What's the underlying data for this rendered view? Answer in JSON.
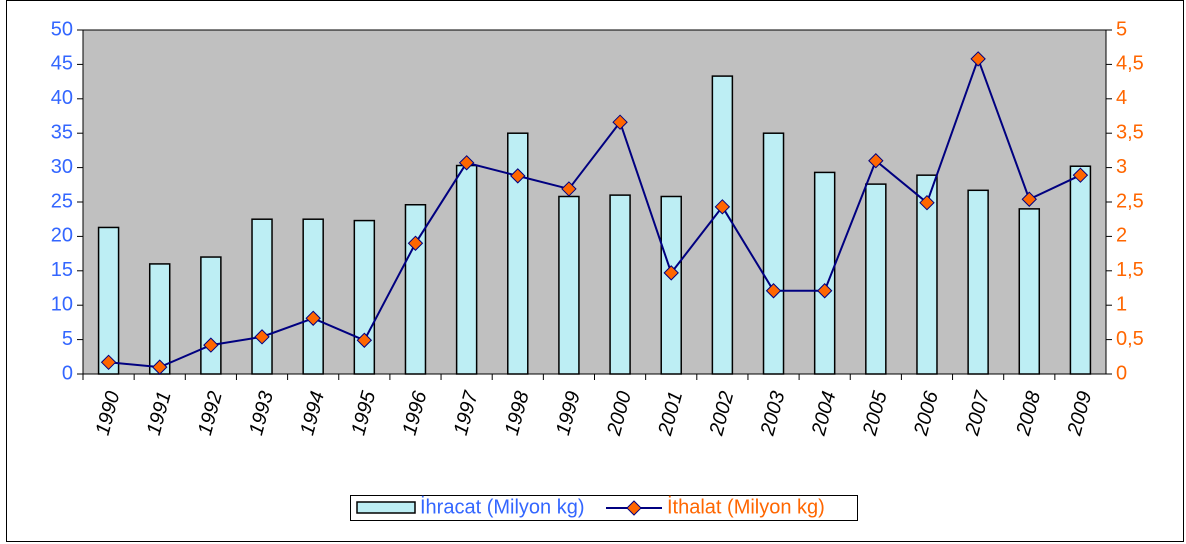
{
  "chart_data": {
    "type": "bar_line",
    "categories": [
      "1990",
      "1991",
      "1992",
      "1993",
      "1994",
      "1995",
      "1996",
      "1997",
      "1998",
      "1999",
      "2000",
      "2001",
      "2002",
      "2003",
      "2004",
      "2005",
      "2006",
      "2007",
      "2008",
      "2009"
    ],
    "series": [
      {
        "name": "İhracat (Milyon kg)",
        "type": "bar",
        "color": "#bdeef4",
        "label_color": "#3366ff",
        "axis": "y",
        "values": [
          21.3,
          16,
          17,
          22.5,
          22.5,
          22.3,
          24.6,
          30.3,
          35,
          25.8,
          26,
          25.8,
          43.3,
          35,
          29.3,
          27.6,
          28.9,
          26.7,
          24,
          30.2
        ]
      },
      {
        "name": "İthalat (Milyon kg)",
        "type": "line",
        "color": "#000080",
        "marker_color": "#ff6600",
        "label_color": "#ff6600",
        "axis": "y2",
        "values": [
          0.17,
          0.1,
          0.42,
          0.54,
          0.81,
          0.49,
          1.9,
          3.07,
          2.88,
          2.69,
          3.66,
          1.47,
          2.43,
          1.21,
          1.21,
          3.1,
          2.49,
          4.58,
          2.54,
          2.89
        ]
      }
    ],
    "ylim": [
      0,
      50
    ],
    "yticks": [
      0,
      5,
      10,
      15,
      20,
      25,
      30,
      35,
      40,
      45,
      50
    ],
    "y2lim": [
      0,
      5
    ],
    "y2ticks": [
      0,
      {
        "value": 0.5,
        "label": "0,5"
      },
      1,
      {
        "value": 1.5,
        "label": "1,5"
      },
      2,
      {
        "value": 2.5,
        "label": "2,5"
      },
      3,
      {
        "value": 3.5,
        "label": "3,5"
      },
      4,
      {
        "value": 4.5,
        "label": "4,5"
      },
      5
    ],
    "plot_background": "#c0c0c0",
    "legend": "bottom"
  }
}
